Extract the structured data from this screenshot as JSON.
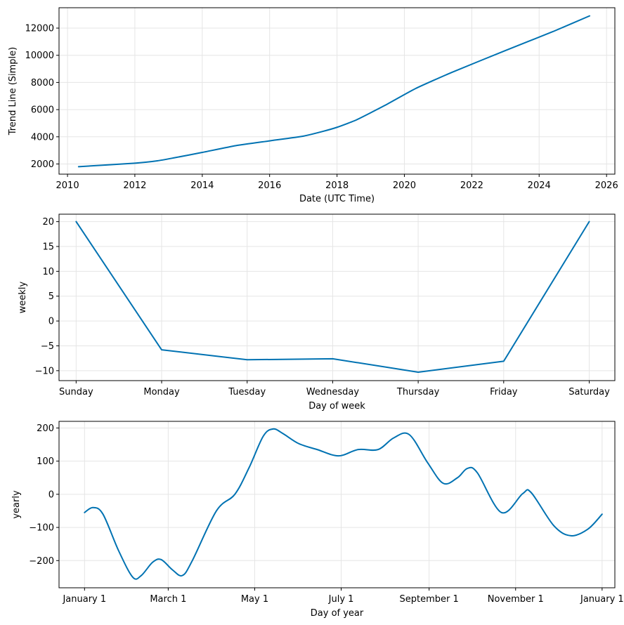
{
  "colors": {
    "line": "#0072B2",
    "grid": "#e5e5e5",
    "axis": "#000000",
    "background": "#ffffff"
  },
  "chart_data": [
    {
      "type": "line",
      "name": "trend",
      "xlabel": "Date (UTC Time)",
      "ylabel": "Trend Line (Simple)",
      "x_axis": "date",
      "xlim": [
        "2009-10-01",
        "2026-04-01"
      ],
      "ylim": [
        1250,
        13500
      ],
      "xticks": [
        {
          "value": "2010-01-01",
          "label": "2010"
        },
        {
          "value": "2012-01-01",
          "label": "2012"
        },
        {
          "value": "2014-01-01",
          "label": "2014"
        },
        {
          "value": "2016-01-01",
          "label": "2016"
        },
        {
          "value": "2018-01-01",
          "label": "2018"
        },
        {
          "value": "2020-01-01",
          "label": "2020"
        },
        {
          "value": "2022-01-01",
          "label": "2022"
        },
        {
          "value": "2024-01-01",
          "label": "2024"
        },
        {
          "value": "2026-01-01",
          "label": "2026"
        }
      ],
      "yticks": [
        {
          "value": 2000,
          "label": "2000"
        },
        {
          "value": 4000,
          "label": "4000"
        },
        {
          "value": 6000,
          "label": "6000"
        },
        {
          "value": 8000,
          "label": "8000"
        },
        {
          "value": 10000,
          "label": "10000"
        },
        {
          "value": 12000,
          "label": "12000"
        }
      ],
      "grid": true,
      "points": [
        {
          "x": "2010-05-01",
          "y": 1800
        },
        {
          "x": "2012-01-01",
          "y": 2060
        },
        {
          "x": "2012-09-01",
          "y": 2230
        },
        {
          "x": "2013-03-01",
          "y": 2450
        },
        {
          "x": "2014-01-01",
          "y": 2850
        },
        {
          "x": "2015-01-01",
          "y": 3350
        },
        {
          "x": "2016-01-01",
          "y": 3700
        },
        {
          "x": "2017-01-01",
          "y": 4050
        },
        {
          "x": "2017-08-01",
          "y": 4400
        },
        {
          "x": "2018-01-01",
          "y": 4700
        },
        {
          "x": "2018-08-01",
          "y": 5250
        },
        {
          "x": "2019-06-01",
          "y": 6300
        },
        {
          "x": "2020-05-01",
          "y": 7550
        },
        {
          "x": "2021-06-01",
          "y": 8750
        },
        {
          "x": "2023-01-01",
          "y": 10350
        },
        {
          "x": "2024-06-01",
          "y": 11750
        },
        {
          "x": "2025-07-01",
          "y": 12900
        }
      ]
    },
    {
      "type": "line",
      "name": "weekly",
      "xlabel": "Day of week",
      "ylabel": "weekly",
      "x_axis": "category",
      "categories": [
        "Sunday",
        "Monday",
        "Tuesday",
        "Wednesday",
        "Thursday",
        "Friday",
        "Saturday"
      ],
      "values": [
        20.0,
        -5.8,
        -7.8,
        -7.6,
        -10.3,
        -8.1,
        20.0
      ],
      "xlim": [
        -0.2,
        6.3
      ],
      "ylim": [
        -12,
        21.5
      ],
      "yticks": [
        {
          "value": -10,
          "label": "−10"
        },
        {
          "value": -5,
          "label": "−5"
        },
        {
          "value": 0,
          "label": "0"
        },
        {
          "value": 5,
          "label": "5"
        },
        {
          "value": 10,
          "label": "10"
        },
        {
          "value": 15,
          "label": "15"
        },
        {
          "value": 20,
          "label": "20"
        }
      ],
      "grid": true
    },
    {
      "type": "line",
      "name": "yearly",
      "xlabel": "Day of year",
      "ylabel": "yearly",
      "x_axis": "date",
      "xlim": [
        "2016-12-14",
        "2018-01-10"
      ],
      "ylim": [
        -282,
        220
      ],
      "xticks": [
        {
          "value": "2017-01-01",
          "label": "January 1"
        },
        {
          "value": "2017-03-01",
          "label": "March 1"
        },
        {
          "value": "2017-05-01",
          "label": "May 1"
        },
        {
          "value": "2017-07-01",
          "label": "July 1"
        },
        {
          "value": "2017-09-01",
          "label": "September 1"
        },
        {
          "value": "2017-11-01",
          "label": "November 1"
        },
        {
          "value": "2018-01-01",
          "label": "January 1"
        }
      ],
      "yticks": [
        {
          "value": -200,
          "label": "−200"
        },
        {
          "value": -100,
          "label": "−100"
        },
        {
          "value": 0,
          "label": "0"
        },
        {
          "value": 100,
          "label": "100"
        },
        {
          "value": 200,
          "label": "200"
        }
      ],
      "grid": true,
      "points": [
        {
          "x": "2017-01-01",
          "y": -55
        },
        {
          "x": "2017-01-07",
          "y": -40
        },
        {
          "x": "2017-01-14",
          "y": -60
        },
        {
          "x": "2017-01-25",
          "y": -170
        },
        {
          "x": "2017-02-04",
          "y": -250
        },
        {
          "x": "2017-02-10",
          "y": -245
        },
        {
          "x": "2017-02-18",
          "y": -205
        },
        {
          "x": "2017-02-24",
          "y": -197
        },
        {
          "x": "2017-03-04",
          "y": -228
        },
        {
          "x": "2017-03-11",
          "y": -245
        },
        {
          "x": "2017-03-18",
          "y": -200
        },
        {
          "x": "2017-04-04",
          "y": -50
        },
        {
          "x": "2017-04-17",
          "y": 0
        },
        {
          "x": "2017-04-27",
          "y": 80
        },
        {
          "x": "2017-05-07",
          "y": 175
        },
        {
          "x": "2017-05-14",
          "y": 197
        },
        {
          "x": "2017-05-21",
          "y": 183
        },
        {
          "x": "2017-06-01",
          "y": 153
        },
        {
          "x": "2017-06-14",
          "y": 135
        },
        {
          "x": "2017-06-29",
          "y": 116
        },
        {
          "x": "2017-07-13",
          "y": 135
        },
        {
          "x": "2017-07-27",
          "y": 135
        },
        {
          "x": "2017-08-07",
          "y": 170
        },
        {
          "x": "2017-08-18",
          "y": 180
        },
        {
          "x": "2017-08-31",
          "y": 95
        },
        {
          "x": "2017-09-11",
          "y": 33
        },
        {
          "x": "2017-09-21",
          "y": 50
        },
        {
          "x": "2017-09-28",
          "y": 78
        },
        {
          "x": "2017-10-05",
          "y": 65
        },
        {
          "x": "2017-10-22",
          "y": -55
        },
        {
          "x": "2017-11-06",
          "y": 2
        },
        {
          "x": "2017-11-12",
          "y": 5
        },
        {
          "x": "2017-11-28",
          "y": -95
        },
        {
          "x": "2017-12-10",
          "y": -125
        },
        {
          "x": "2017-12-22",
          "y": -105
        },
        {
          "x": "2018-01-01",
          "y": -60
        }
      ]
    }
  ]
}
